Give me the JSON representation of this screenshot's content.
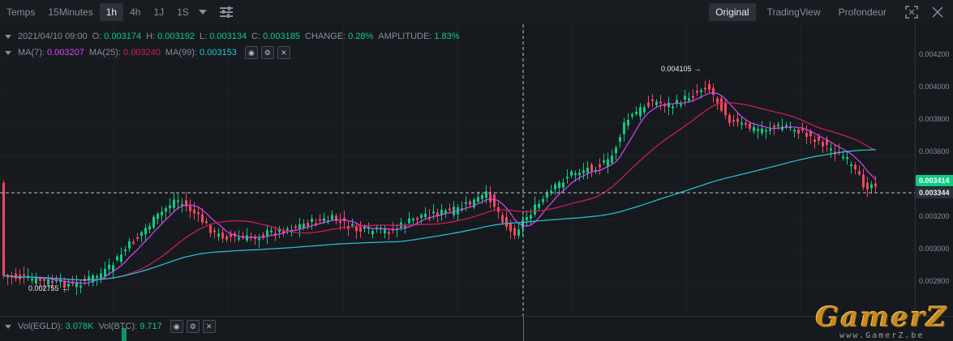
{
  "toolbar": {
    "timeframes": [
      "Temps",
      "15Minutes",
      "1h",
      "4h",
      "1J",
      "1S"
    ],
    "active_timeframe": "1h",
    "views": [
      "Original",
      "TradingView",
      "Profondeur"
    ],
    "active_view": "Original"
  },
  "ohlc": {
    "date": "2021/04/10 09:00",
    "o_label": "O:",
    "o": "0.003174",
    "h_label": "H:",
    "h": "0.003192",
    "l_label": "L:",
    "l": "0.003134",
    "c_label": "C:",
    "c": "0.003185",
    "change_label": "CHANGE:",
    "change": "0.28%",
    "amplitude_label": "AMPLITUDE:",
    "amplitude": "1.83%"
  },
  "ma": {
    "ma7_label": "MA(7):",
    "ma7": "0.003207",
    "ma25_label": "MA(25):",
    "ma25": "0.003240",
    "ma99_label": "MA(99):",
    "ma99": "0.003153"
  },
  "volume": {
    "vol_egld_label": "Vol(EGLD):",
    "vol_egld": "3.078K",
    "vol_btc_label": "Vol(BTC):",
    "vol_btc": "9.717"
  },
  "price_axis": {
    "ticks": [
      "0.004200",
      "0.004000",
      "0.003800",
      "0.003600",
      "0.003200",
      "0.003000",
      "0.002800"
    ],
    "last_price": "0.003414",
    "crosshair_price": "0.003344"
  },
  "annotations": {
    "high": "0.004105",
    "low": "0.002755"
  },
  "watermark": {
    "title": "GamerZ",
    "url": "www.GamerZ.be"
  },
  "colors": {
    "up": "#0ecb81",
    "down": "#f6465d",
    "ma7": "#e040fb",
    "ma25": "#d81b60",
    "ma99": "#26c6da",
    "background": "#161a1e"
  }
}
